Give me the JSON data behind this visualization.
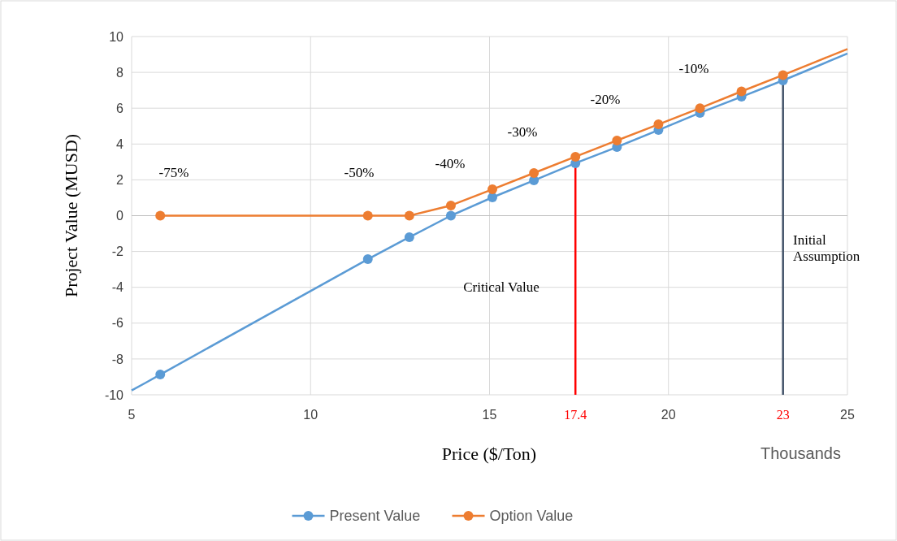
{
  "chart_data": {
    "type": "line",
    "xlabel": "Price ($/Ton)",
    "ylabel": "Project Value (MUSD)",
    "xlim": [
      5,
      25
    ],
    "xticks": [
      5,
      10,
      15,
      20,
      25
    ],
    "ylim": [
      -10,
      10
    ],
    "yticks": [
      -10,
      -8,
      -6,
      -4,
      -2,
      0,
      2,
      4,
      6,
      8,
      10
    ],
    "grid": true,
    "legend": "bottom",
    "marker": "circle",
    "series": [
      {
        "type": "line",
        "color": "#5b9bd5",
        "marker": "none",
        "x": [
          5,
          5.4,
          5.8
        ],
        "values": [
          -9.76,
          -9.32,
          -8.87
        ]
      },
      {
        "type": "line",
        "color": "#5b9bd5",
        "marker": "none",
        "x": [
          23.2,
          24.1,
          25
        ],
        "values": [
          7.55,
          8.3,
          9.05
        ]
      },
      {
        "type": "line",
        "color": "#ed7d31",
        "marker": "none",
        "x": [
          23.2,
          24.1,
          25
        ],
        "values": [
          7.85,
          8.58,
          9.3
        ]
      },
      {
        "name": "Present Value",
        "color": "#5b9bd5",
        "x": [
          5.8,
          11.6,
          12.76,
          13.92,
          15.08,
          16.24,
          17.4,
          18.56,
          19.72,
          20.88,
          22.04,
          23.2
        ],
        "values": [
          -8.87,
          -2.43,
          -1.2,
          0,
          1.02,
          1.97,
          2.93,
          3.83,
          4.78,
          5.74,
          6.64,
          7.55
        ]
      },
      {
        "name": "Option Value",
        "color": "#ed7d31",
        "x": [
          5.8,
          11.6,
          12.76,
          13.92,
          15.08,
          16.24,
          17.4,
          18.56,
          19.72,
          20.88,
          22.04,
          23.2
        ],
        "values": [
          0,
          0,
          0,
          0.57,
          1.47,
          2.38,
          3.29,
          4.2,
          5.1,
          6.0,
          6.94,
          7.85
        ]
      }
    ],
    "ref_lines": [
      {
        "axis": "x",
        "value": 17.4,
        "label": "17.4",
        "color": "#ff0000"
      },
      {
        "axis": "x",
        "value": 23.2,
        "label": "23",
        "color": "#44546a"
      }
    ],
    "annotations": [
      "-75%",
      "-50%",
      "-40%",
      "-30%",
      "-20%",
      "-10%",
      "Critical Value",
      "Initial Assumption",
      "Thousands"
    ]
  }
}
